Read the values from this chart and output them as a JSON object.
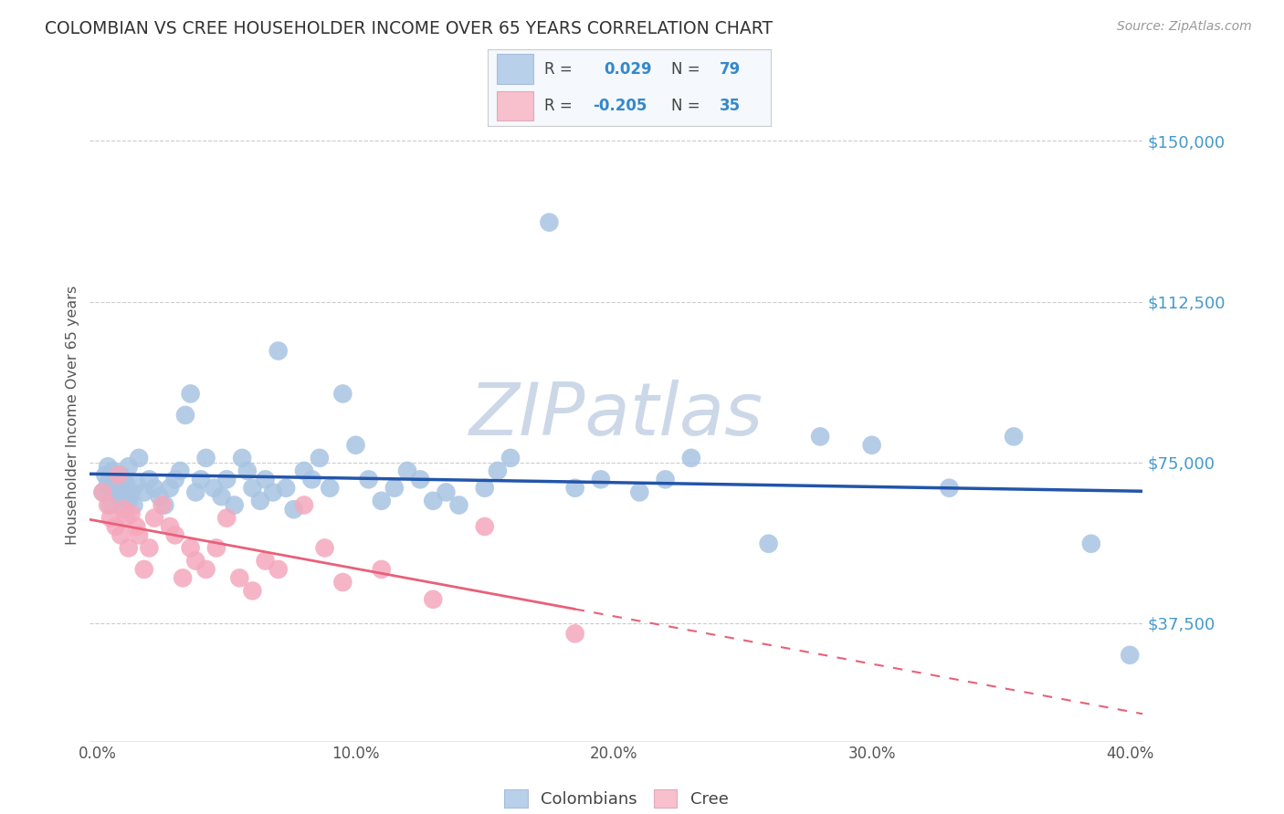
{
  "title": "COLOMBIAN VS CREE HOUSEHOLDER INCOME OVER 65 YEARS CORRELATION CHART",
  "source": "Source: ZipAtlas.com",
  "ylabel": "Householder Income Over 65 years",
  "ytick_labels": [
    "$37,500",
    "$75,000",
    "$112,500",
    "$150,000"
  ],
  "ytick_vals": [
    37500,
    75000,
    112500,
    150000
  ],
  "ymin": 10000,
  "ymax": 162000,
  "xmin": -0.003,
  "xmax": 0.405,
  "colombian_color": "#a8c4e2",
  "cree_color": "#f4a8bc",
  "colombian_line_color": "#2255aa",
  "cree_line_color": "#e8607a",
  "legend_box_color_colombian": "#b8d0ea",
  "legend_box_color_cree": "#f8c0cc",
  "watermark_color": "#ccd8e8",
  "background_color": "#ffffff",
  "grid_color": "#cccccc",
  "colombian_x": [
    0.002,
    0.003,
    0.004,
    0.004,
    0.005,
    0.005,
    0.006,
    0.006,
    0.007,
    0.007,
    0.008,
    0.008,
    0.009,
    0.01,
    0.01,
    0.011,
    0.011,
    0.012,
    0.012,
    0.013,
    0.014,
    0.015,
    0.016,
    0.018,
    0.02,
    0.022,
    0.024,
    0.026,
    0.028,
    0.03,
    0.032,
    0.034,
    0.036,
    0.038,
    0.04,
    0.042,
    0.045,
    0.048,
    0.05,
    0.053,
    0.056,
    0.058,
    0.06,
    0.063,
    0.065,
    0.068,
    0.07,
    0.073,
    0.076,
    0.08,
    0.083,
    0.086,
    0.09,
    0.095,
    0.1,
    0.105,
    0.11,
    0.115,
    0.12,
    0.125,
    0.13,
    0.135,
    0.14,
    0.15,
    0.155,
    0.16,
    0.175,
    0.185,
    0.195,
    0.21,
    0.22,
    0.23,
    0.26,
    0.28,
    0.3,
    0.33,
    0.355,
    0.385,
    0.4
  ],
  "colombian_y": [
    68000,
    72000,
    70000,
    74000,
    65000,
    71000,
    68000,
    73000,
    69000,
    71000,
    67000,
    70000,
    72000,
    65000,
    70000,
    68000,
    70000,
    66000,
    74000,
    68000,
    65000,
    70000,
    76000,
    68000,
    71000,
    69000,
    67000,
    65000,
    69000,
    71000,
    73000,
    86000,
    91000,
    68000,
    71000,
    76000,
    69000,
    67000,
    71000,
    65000,
    76000,
    73000,
    69000,
    66000,
    71000,
    68000,
    101000,
    69000,
    64000,
    73000,
    71000,
    76000,
    69000,
    91000,
    79000,
    71000,
    66000,
    69000,
    73000,
    71000,
    66000,
    68000,
    65000,
    69000,
    73000,
    76000,
    131000,
    69000,
    71000,
    68000,
    71000,
    76000,
    56000,
    81000,
    79000,
    69000,
    81000,
    56000,
    30000
  ],
  "cree_x": [
    0.002,
    0.004,
    0.005,
    0.007,
    0.008,
    0.009,
    0.01,
    0.011,
    0.012,
    0.013,
    0.015,
    0.016,
    0.018,
    0.02,
    0.022,
    0.025,
    0.028,
    0.03,
    0.033,
    0.036,
    0.038,
    0.042,
    0.046,
    0.05,
    0.055,
    0.06,
    0.065,
    0.07,
    0.08,
    0.088,
    0.095,
    0.11,
    0.13,
    0.15,
    0.185
  ],
  "cree_y": [
    68000,
    65000,
    62000,
    60000,
    72000,
    58000,
    64000,
    62000,
    55000,
    63000,
    60000,
    58000,
    50000,
    55000,
    62000,
    65000,
    60000,
    58000,
    48000,
    55000,
    52000,
    50000,
    55000,
    62000,
    48000,
    45000,
    52000,
    50000,
    65000,
    55000,
    47000,
    50000,
    43000,
    60000,
    35000
  ]
}
